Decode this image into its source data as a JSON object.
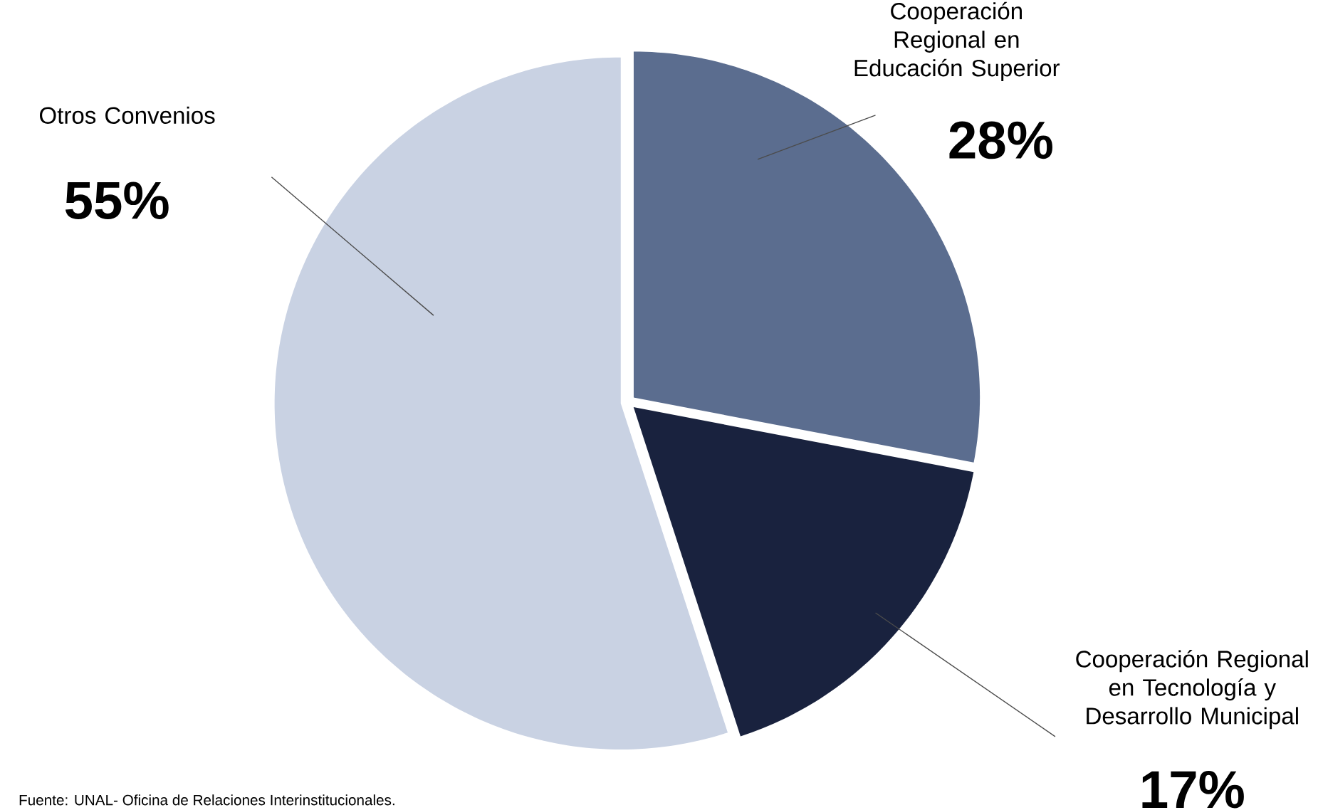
{
  "chart_data": {
    "type": "pie",
    "categories": [
      "Cooperación Regional en Educación Superior",
      "Cooperación Regional en Tecnología y Desarrollo Municipal",
      "Otros Convenios"
    ],
    "values": [
      28,
      17,
      55
    ],
    "value_labels": [
      "28%",
      "17%",
      "55%"
    ],
    "colors": [
      "#5b6d8f",
      "#19223e",
      "#c9d2e3"
    ],
    "annotations": [
      "Fuente: UNAL- Oficina de Relaciones Interinstitucionales."
    ]
  }
}
